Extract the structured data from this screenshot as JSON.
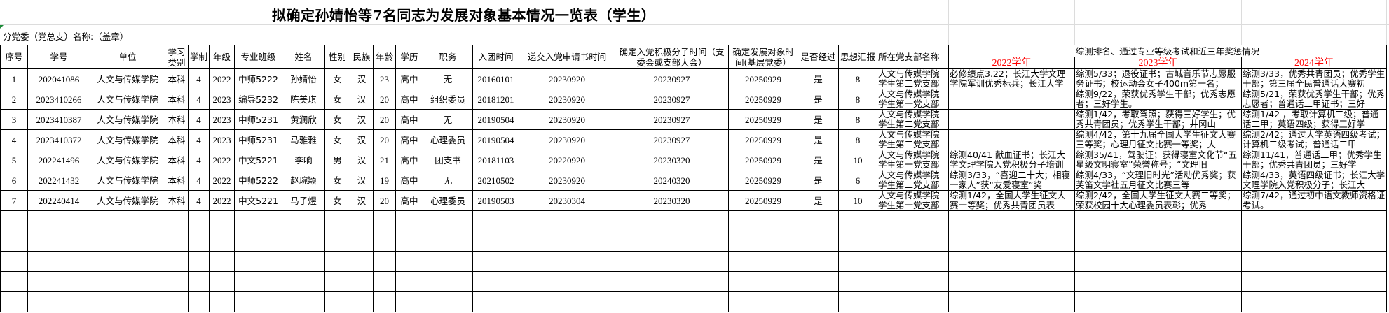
{
  "title": "拟确定孙婧怡等7名同志为发展对象基本情况一览表（学生）",
  "subtitle": "分党委（党总支）名称:（盖章）",
  "headers": [
    "序号",
    "学号",
    "单位",
    "学习类别",
    "学制",
    "年级",
    "专业班级",
    "姓名",
    "性别",
    "民族",
    "年龄",
    "学历",
    "职务",
    "入团时间",
    "递交入党申请书时间",
    "确定入党积极分子时间（支委会或支部大会）",
    "确定发展对象时间(基层党委）",
    "是否经过",
    "思想汇报",
    "所在党支部名称"
  ],
  "awards_header": "综测排名、通过专业等级考试和近三年奖惩情况",
  "years": [
    "2022学年",
    "2023学年",
    "2024学年"
  ],
  "colors": {
    "year_label": "#ff0000",
    "grid": "#000000"
  },
  "rows": [
    {
      "cells": [
        "1",
        "202041086",
        "人文与传媒学院",
        "本科",
        "4",
        "2022",
        "中师5222",
        "孙婧怡",
        "女",
        "汉",
        "23",
        "高中",
        "无",
        "20160101",
        "20230920",
        "20230927",
        "20250929",
        "是",
        "8",
        "人文与传媒学院学生第二党支部"
      ],
      "awards": [
        "必修绩点3.22；长江大学文理学院军训优秀标兵；长江大学",
        "综测5/33；退役证书；古城音乐节志愿服务证书；校运动会女子400m第一名；",
        "综测3/33，优秀共青团员；优秀学生干部；第三届全民普通话大赛初"
      ]
    },
    {
      "cells": [
        "2",
        "2023410266",
        "人文与传媒学院",
        "本科",
        "4",
        "2023",
        "编导5232",
        "陈美琪",
        "女",
        "汉",
        "20",
        "高中",
        "组织委员",
        "20181201",
        "20230920",
        "20230927",
        "20250929",
        "是",
        "8",
        "人文与传媒学院学生第一党支部"
      ],
      "awards": [
        "",
        "综测9/22，荣获优秀学生干部；优秀志愿者；三好学生。",
        "综测5/21，荣获优秀学生干部；优秀志愿者；普通话二甲证书；三好"
      ]
    },
    {
      "cells": [
        "3",
        "2023410387",
        "人文与传媒学院",
        "本科",
        "4",
        "2023",
        "中师5231",
        "黄润欣",
        "女",
        "汉",
        "20",
        "高中",
        "无",
        "20190504",
        "20230920",
        "20230927",
        "20250929",
        "是",
        "8",
        "人文与传媒学院学生第二党支部"
      ],
      "awards": [
        "",
        "综测1/42，考取驾照；获得三好学生；优秀共青团员；优秀学生干部；井冈山",
        "综测1/42 ，考取计算机二级；普通话二甲；英语四级；获得三好学"
      ]
    },
    {
      "cells": [
        "4",
        "2023410372",
        "人文与传媒学院",
        "本科",
        "4",
        "2023",
        "中师5231",
        "马雅雅",
        "女",
        "汉",
        "20",
        "高中",
        "心理委员",
        "20190504",
        "20230920",
        "20230927",
        "20250929",
        "是",
        "8",
        "人文与传媒学院学生第二党支部"
      ],
      "awards": [
        "",
        "综测4/42，第十九届全国大学生征文大赛三等奖；心理月征文比赛一等奖；大",
        "综测2/42；通过大学英语四级考试；计算机二级考试；普通话二甲"
      ]
    },
    {
      "cells": [
        "5",
        "202241496",
        "人文与传媒学院",
        "本科",
        "4",
        "2022",
        "中文5221",
        "李响",
        "男",
        "汉",
        "21",
        "高中",
        "团支书",
        "20181103",
        "20220920",
        "20230320",
        "20250929",
        "是",
        "10",
        "人文与传媒学院学生第一党支部"
      ],
      "awards": [
        "综测40/41 献血证书；长江大学文理学院入党积极分子培训",
        "综测35/41，驾驶证；获得寝室文化节“五星级文明寝室”荣誉称号；“文理旧",
        "综测11/41，普通话二甲；优秀学生干部；优秀共青团员；三好学"
      ]
    },
    {
      "cells": [
        "6",
        "202241432",
        "人文与传媒学院",
        "本科",
        "4",
        "2022",
        "中师5222",
        "赵琬颖",
        "女",
        "汉",
        "19",
        "高中",
        "无",
        "20210502",
        "20230920",
        "20240320",
        "20250929",
        "是",
        "6",
        "人文与传媒学院学生第二党支部"
      ],
      "awards": [
        "综测3/33，“喜迎二十大；相寝一家人”获“友爱寝室”奖",
        "综测4/33，“文理旧时光”活动优秀奖；获芙笛文学社五月征文比赛三等",
        "综测4/33，英语四级证书；长江大学文理学院入党积极分子；长江大"
      ]
    },
    {
      "cells": [
        "7",
        "202240414",
        "人文与传媒学院",
        "本科",
        "4",
        "2022",
        "中文5221",
        "马子煜",
        "女",
        "汉",
        "20",
        "高中",
        "心理委员",
        "20190503",
        "20230304",
        "20230320",
        "20250929",
        "是",
        "10",
        "人文与传媒学院学生第一党支部"
      ],
      "awards": [
        "综测1/42，全国大学生征文大赛一等奖；优秀共青团员表",
        "综测2/42，全国大学生征文大赛二等奖；荣获校园十大心理委员表彰；优秀",
        "综测7/42，通过初中语文教师资格证考试。"
      ]
    }
  ],
  "empty_rows": 5
}
